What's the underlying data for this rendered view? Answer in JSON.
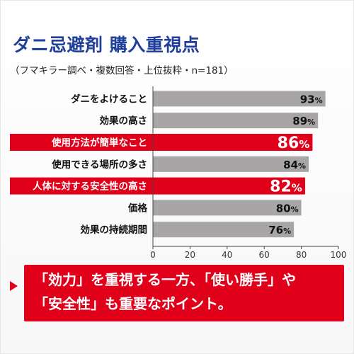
{
  "header": {
    "title": "ダニ忌避剤 購入重視点",
    "subtitle": "（フマキラー調べ・複数回答・上位抜粋・n=181）"
  },
  "chart_data": {
    "type": "bar",
    "orientation": "horizontal",
    "categories": [
      "ダニをよけること",
      "効果の高さ",
      "使用方法が簡単なこと",
      "使用できる場所の多さ",
      "人体に対する安全性の高さ",
      "価格",
      "効果の持続期間"
    ],
    "values": [
      93,
      89,
      86,
      84,
      82,
      80,
      76
    ],
    "value_labels": [
      "93%",
      "89%",
      "86%",
      "84%",
      "82%",
      "80%",
      "76%"
    ],
    "highlighted": [
      false,
      false,
      true,
      false,
      true,
      false,
      false
    ],
    "xlim": [
      0,
      100
    ],
    "xticks": [
      0,
      20,
      40,
      60,
      80,
      100
    ],
    "grid": false,
    "colors": {
      "normal": "#a8a5a6",
      "highlight": "#e1001a",
      "highlight_label": "#e1001a",
      "normal_label": "#111111"
    }
  },
  "callout": {
    "lines": [
      "「効力」を重視する一方、「使い勝手」や",
      "「安全性」も重要なポイント。"
    ]
  }
}
